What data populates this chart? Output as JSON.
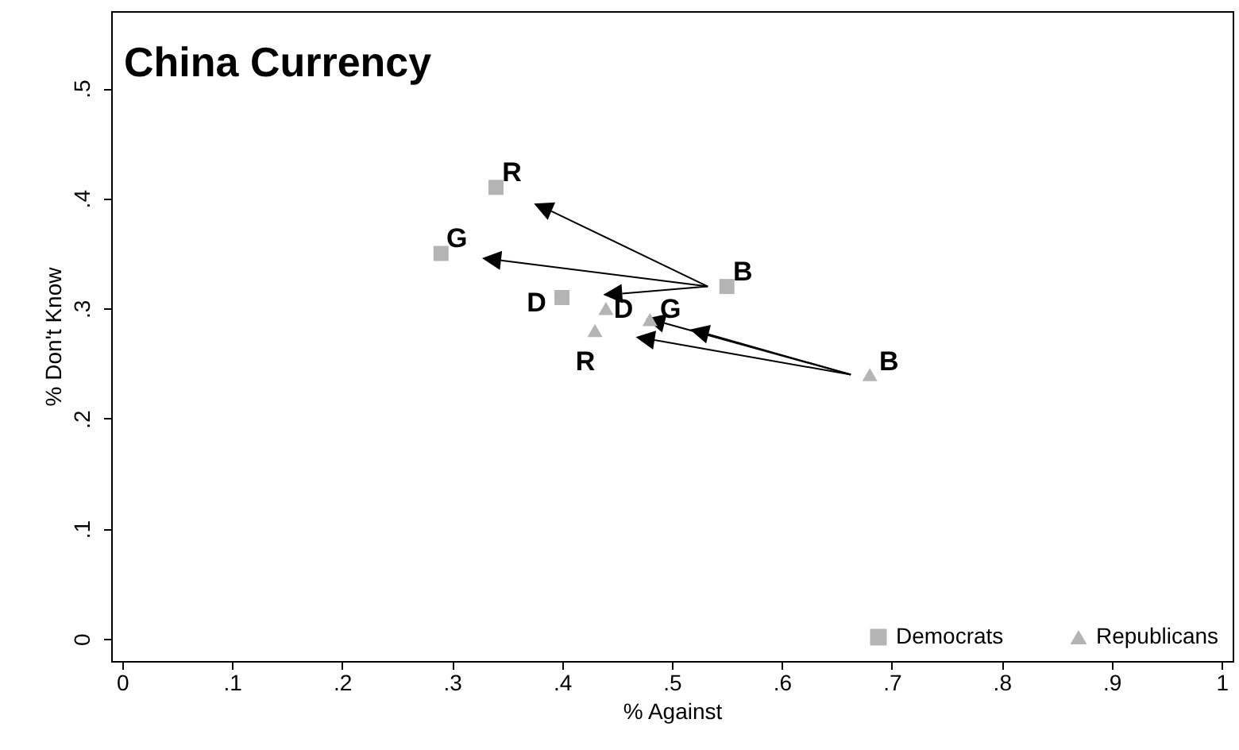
{
  "chart_data": {
    "type": "scatter",
    "title": "China Currency",
    "xlabel": "% Against",
    "ylabel": "% Don't Know",
    "xlim": [
      -0.01,
      1.01
    ],
    "ylim": [
      -0.02,
      0.57
    ],
    "xticks": [
      0,
      {
        "value": 0.1,
        "label": ".1"
      },
      {
        "value": 0.2,
        "label": ".2"
      },
      {
        "value": 0.3,
        "label": ".3"
      },
      {
        "value": 0.4,
        "label": ".4"
      },
      {
        "value": 0.5,
        "label": ".5"
      },
      {
        "value": 0.6,
        "label": ".6"
      },
      {
        "value": 0.7,
        "label": ".7"
      },
      {
        "value": 0.8,
        "label": ".8"
      },
      {
        "value": 0.9,
        "label": ".9"
      },
      1
    ],
    "yticks": [
      0,
      {
        "value": 0.1,
        "label": ".1"
      },
      {
        "value": 0.2,
        "label": ".2"
      },
      {
        "value": 0.3,
        "label": ".3"
      },
      {
        "value": 0.4,
        "label": ".4"
      },
      {
        "value": 0.5,
        "label": ".5"
      }
    ],
    "grid": false,
    "legend": "bottom right",
    "series": [
      {
        "name": "Democrats",
        "color": "#b4b4b4",
        "marker": "square",
        "x": [
          0.55,
          0.34,
          0.29,
          0.4
        ],
        "values": [
          0.32,
          0.41,
          0.35,
          0.31
        ],
        "value_labels": [
          "B",
          "R",
          "G",
          "D"
        ]
      },
      {
        "name": "Republicans",
        "color": "#b4b4b4",
        "marker": "triangle",
        "x": [
          0.68,
          0.44,
          0.48,
          0.43
        ],
        "values": [
          0.24,
          0.3,
          0.29,
          0.28
        ],
        "value_labels": [
          "B",
          "D",
          "G",
          "R"
        ]
      }
    ]
  }
}
